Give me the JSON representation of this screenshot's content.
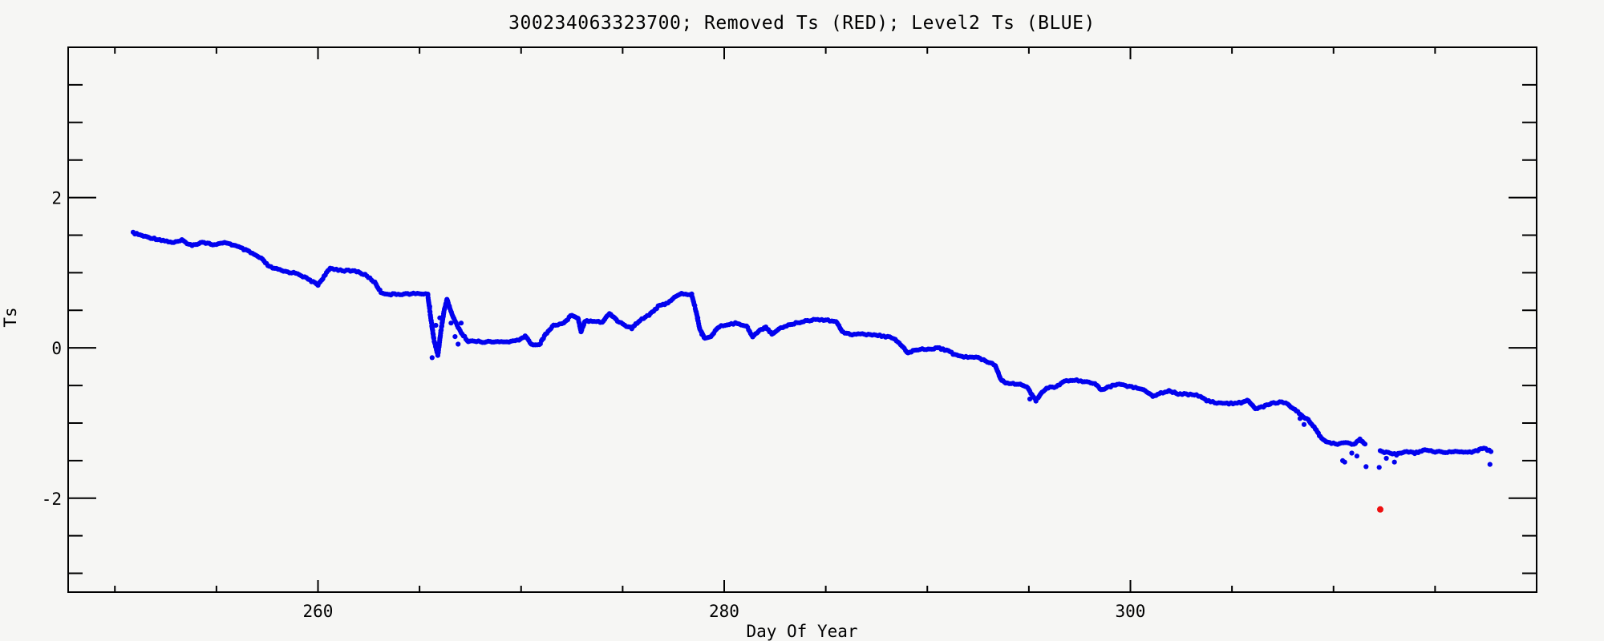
{
  "chart_data": {
    "type": "scatter",
    "title": "300234063323700; Removed Ts (RED); Level2 Ts (BLUE)",
    "xlabel": "Day Of Year",
    "ylabel": "Ts",
    "xlim": [
      247.7,
      320.0
    ],
    "ylim": [
      -3.25,
      4.0
    ],
    "x_major_ticks": [
      260,
      280,
      300
    ],
    "x_minor_step": 5,
    "y_major_ticks": [
      -2,
      0,
      2
    ],
    "y_minor_step": 0.5,
    "grid": false,
    "background": "#f6f6f4",
    "axis_color": "#000000",
    "series": [
      {
        "name": "Level2 Ts",
        "color": "#0202ee",
        "marker": "dot",
        "segments": [
          [
            [
              250.9,
              1.53
            ],
            [
              251.5,
              1.48
            ],
            [
              252.2,
              1.44
            ],
            [
              252.9,
              1.4
            ],
            [
              253.3,
              1.43
            ],
            [
              253.8,
              1.36
            ],
            [
              254.3,
              1.41
            ],
            [
              254.9,
              1.37
            ],
            [
              255.5,
              1.4
            ],
            [
              256.1,
              1.34
            ],
            [
              256.6,
              1.28
            ],
            [
              257.2,
              1.19
            ],
            [
              257.6,
              1.08
            ],
            [
              258.3,
              1.02
            ],
            [
              259.0,
              0.99
            ],
            [
              259.6,
              0.9
            ],
            [
              260.0,
              0.84
            ],
            [
              260.3,
              0.95
            ],
            [
              260.6,
              1.06
            ],
            [
              261.2,
              1.03
            ],
            [
              261.9,
              1.02
            ],
            [
              262.4,
              0.96
            ],
            [
              262.8,
              0.87
            ],
            [
              263.1,
              0.74
            ],
            [
              263.5,
              0.71
            ],
            [
              264.5,
              0.72
            ],
            [
              265.4,
              0.72
            ],
            [
              265.55,
              0.4
            ],
            [
              265.7,
              0.12
            ],
            [
              265.9,
              -0.1
            ],
            [
              266.05,
              0.22
            ],
            [
              266.2,
              0.48
            ],
            [
              266.35,
              0.65
            ],
            [
              266.5,
              0.52
            ],
            [
              266.7,
              0.38
            ],
            [
              266.9,
              0.28
            ],
            [
              267.1,
              0.18
            ],
            [
              267.4,
              0.09
            ],
            [
              268.2,
              0.08
            ],
            [
              269.3,
              0.08
            ],
            [
              269.9,
              0.1
            ],
            [
              270.2,
              0.16
            ],
            [
              270.5,
              0.05
            ],
            [
              270.9,
              0.04
            ],
            [
              271.2,
              0.18
            ],
            [
              271.6,
              0.3
            ],
            [
              272.1,
              0.33
            ],
            [
              272.5,
              0.44
            ],
            [
              272.8,
              0.4
            ],
            [
              272.95,
              0.22
            ],
            [
              273.15,
              0.36
            ],
            [
              273.6,
              0.36
            ],
            [
              274.0,
              0.34
            ],
            [
              274.35,
              0.46
            ],
            [
              274.75,
              0.36
            ],
            [
              275.1,
              0.3
            ],
            [
              275.45,
              0.26
            ],
            [
              275.85,
              0.37
            ],
            [
              276.3,
              0.44
            ],
            [
              276.75,
              0.55
            ],
            [
              277.15,
              0.59
            ],
            [
              277.55,
              0.67
            ],
            [
              277.9,
              0.72
            ],
            [
              278.4,
              0.71
            ],
            [
              278.6,
              0.5
            ],
            [
              278.8,
              0.25
            ],
            [
              279.05,
              0.12
            ],
            [
              279.35,
              0.16
            ],
            [
              279.75,
              0.28
            ],
            [
              280.15,
              0.31
            ],
            [
              280.65,
              0.33
            ],
            [
              281.1,
              0.29
            ],
            [
              281.4,
              0.15
            ],
            [
              281.75,
              0.23
            ],
            [
              282.05,
              0.28
            ],
            [
              282.35,
              0.18
            ],
            [
              282.7,
              0.26
            ],
            [
              283.25,
              0.31
            ],
            [
              284.0,
              0.36
            ],
            [
              284.6,
              0.38
            ],
            [
              285.1,
              0.37
            ],
            [
              285.5,
              0.35
            ],
            [
              285.85,
              0.21
            ],
            [
              286.3,
              0.18
            ],
            [
              287.1,
              0.18
            ],
            [
              287.75,
              0.16
            ],
            [
              288.35,
              0.13
            ],
            [
              288.75,
              0.02
            ],
            [
              289.05,
              -0.07
            ],
            [
              289.45,
              -0.02
            ],
            [
              289.95,
              -0.02
            ],
            [
              290.5,
              0.0
            ],
            [
              290.95,
              -0.03
            ],
            [
              291.35,
              -0.09
            ],
            [
              291.8,
              -0.12
            ],
            [
              292.5,
              -0.13
            ],
            [
              292.95,
              -0.18
            ],
            [
              293.35,
              -0.23
            ],
            [
              293.6,
              -0.41
            ],
            [
              293.85,
              -0.47
            ],
            [
              294.5,
              -0.48
            ],
            [
              294.9,
              -0.52
            ],
            [
              295.15,
              -0.63
            ],
            [
              295.35,
              -0.7
            ],
            [
              295.65,
              -0.58
            ],
            [
              295.95,
              -0.53
            ],
            [
              296.35,
              -0.52
            ],
            [
              296.75,
              -0.44
            ],
            [
              297.25,
              -0.43
            ],
            [
              297.85,
              -0.45
            ],
            [
              298.25,
              -0.47
            ],
            [
              298.55,
              -0.56
            ],
            [
              298.95,
              -0.52
            ],
            [
              299.35,
              -0.48
            ],
            [
              299.75,
              -0.5
            ],
            [
              300.25,
              -0.53
            ],
            [
              300.65,
              -0.56
            ],
            [
              301.1,
              -0.64
            ],
            [
              301.5,
              -0.6
            ],
            [
              301.9,
              -0.57
            ],
            [
              302.35,
              -0.61
            ],
            [
              302.95,
              -0.62
            ],
            [
              303.45,
              -0.64
            ],
            [
              303.75,
              -0.7
            ],
            [
              304.15,
              -0.73
            ],
            [
              304.85,
              -0.74
            ],
            [
              305.45,
              -0.73
            ],
            [
              305.75,
              -0.69
            ],
            [
              306.15,
              -0.81
            ],
            [
              306.55,
              -0.78
            ],
            [
              306.95,
              -0.74
            ],
            [
              307.35,
              -0.72
            ],
            [
              307.75,
              -0.75
            ],
            [
              308.1,
              -0.82
            ],
            [
              308.45,
              -0.91
            ],
            [
              308.75,
              -0.96
            ],
            [
              309.05,
              -1.06
            ],
            [
              309.35,
              -1.18
            ],
            [
              309.7,
              -1.26
            ],
            [
              310.1,
              -1.28
            ],
            [
              310.6,
              -1.26
            ],
            [
              311.0,
              -1.28
            ],
            [
              311.3,
              -1.22
            ],
            [
              311.55,
              -1.28
            ]
          ],
          [
            [
              312.3,
              -1.37
            ],
            [
              312.7,
              -1.4
            ],
            [
              313.1,
              -1.42
            ],
            [
              313.5,
              -1.38
            ],
            [
              314.0,
              -1.4
            ],
            [
              314.5,
              -1.36
            ],
            [
              315.0,
              -1.38
            ],
            [
              315.6,
              -1.39
            ],
            [
              316.1,
              -1.38
            ],
            [
              316.6,
              -1.39
            ],
            [
              317.1,
              -1.37
            ],
            [
              317.4,
              -1.33
            ],
            [
              317.75,
              -1.38
            ]
          ]
        ],
        "outliers": [
          [
            265.5,
            0.55
          ],
          [
            265.62,
            -0.13
          ],
          [
            265.8,
            0.3
          ],
          [
            266.0,
            0.4
          ],
          [
            266.55,
            0.33
          ],
          [
            266.75,
            0.15
          ],
          [
            266.9,
            0.05
          ],
          [
            267.05,
            0.33
          ],
          [
            278.7,
            0.4
          ],
          [
            278.9,
            0.18
          ],
          [
            295.05,
            -0.68
          ],
          [
            295.5,
            -0.65
          ],
          [
            308.35,
            -0.94
          ],
          [
            308.55,
            -1.02
          ],
          [
            310.45,
            -1.5
          ],
          [
            310.55,
            -1.52
          ],
          [
            310.9,
            -1.4
          ],
          [
            311.15,
            -1.44
          ],
          [
            311.6,
            -1.58
          ],
          [
            312.25,
            -1.59
          ],
          [
            312.6,
            -1.47
          ],
          [
            313.0,
            -1.52
          ],
          [
            317.7,
            -1.55
          ]
        ]
      },
      {
        "name": "Removed Ts",
        "color": "#ee1010",
        "marker": "dot",
        "points": [
          [
            312.3,
            -2.15
          ]
        ]
      }
    ]
  }
}
